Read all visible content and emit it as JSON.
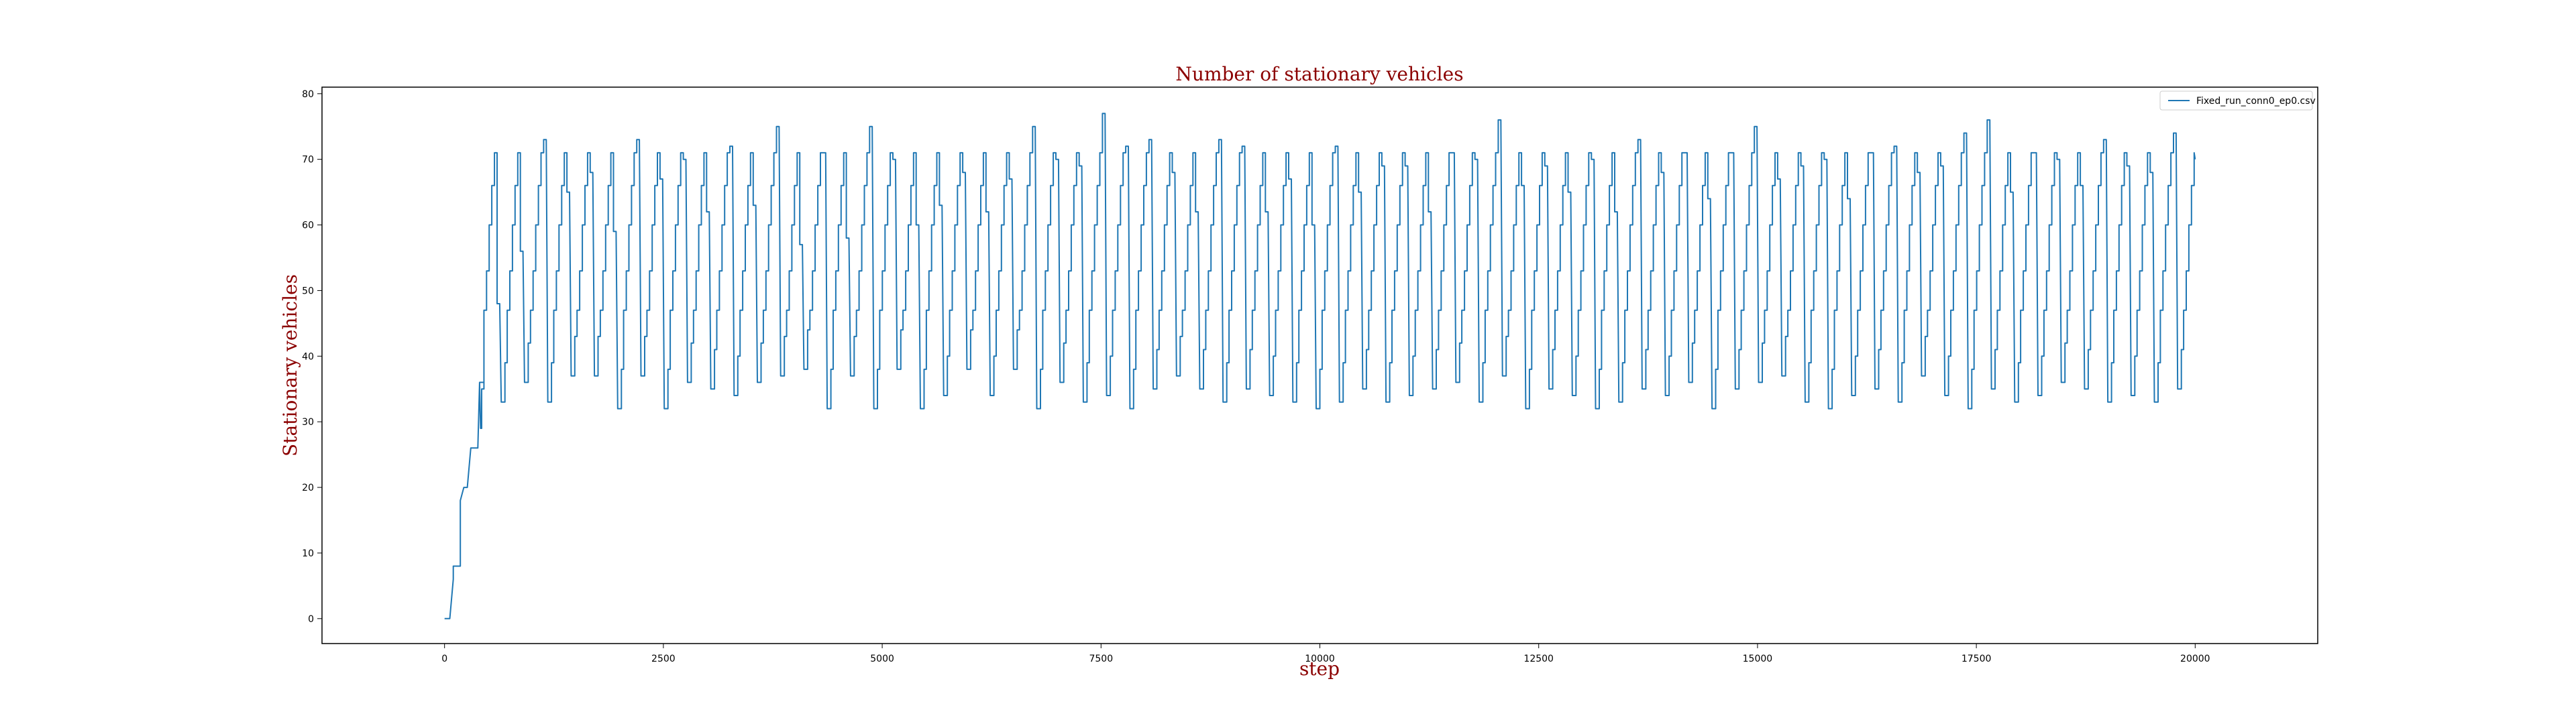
{
  "chart_data": {
    "type": "line",
    "title": "Number of stationary vehicles",
    "xlabel": "step",
    "ylabel": "Stationary vehicles",
    "xlim": [
      -1400,
      21400
    ],
    "ylim": [
      -3.8,
      81
    ],
    "xticks": [
      0,
      2500,
      5000,
      7500,
      10000,
      12500,
      15000,
      17500,
      20000
    ],
    "yticks": [
      0,
      10,
      20,
      30,
      40,
      50,
      60,
      70,
      80
    ],
    "grid": false,
    "legend_position": "top-right",
    "series": [
      {
        "name": "Fixed_run_conn0_ep0.csv",
        "color": "#1f77b4",
        "period": 266,
        "startup": {
          "x": [
            0,
            30,
            60,
            100,
            100,
            140,
            180,
            180,
            220,
            260,
            260,
            300,
            340,
            340,
            380,
            400,
            400,
            440
          ],
          "y": [
            0,
            0,
            0,
            6,
            8,
            8,
            8,
            18,
            20,
            20,
            20,
            26,
            26,
            26,
            26,
            36,
            36,
            36
          ]
        },
        "cycle_start": 400,
        "cycle_end": 20000,
        "cycle_pattern": {
          "comment_free": true,
          "offsets": [
            0,
            12,
            24,
            24,
            50,
            50,
            80,
            80,
            110,
            110,
            140,
            140,
            170,
            170,
            200,
            200,
            230,
            248
          ],
          "levels": [
            36,
            34,
            34,
            40,
            40,
            47,
            47,
            53,
            53,
            60,
            60,
            66,
            66,
            71,
            71,
            72,
            72,
            34
          ]
        },
        "peaks": [
          48,
          56,
          73,
          65,
          68,
          59,
          73,
          67,
          70,
          62,
          72,
          63,
          75,
          57,
          71,
          58,
          75,
          70,
          60,
          63,
          68,
          62,
          67,
          75,
          70,
          69,
          77,
          72,
          73,
          68,
          62,
          73,
          72,
          62,
          67,
          60,
          72,
          65,
          69,
          69,
          62,
          71,
          70,
          76,
          66,
          69,
          65,
          70,
          62,
          73,
          68,
          71,
          64,
          71,
          75,
          67,
          69,
          70,
          64,
          71,
          72,
          68,
          69,
          74,
          76,
          65,
          71,
          70,
          66,
          73,
          69,
          68,
          74,
          69,
          73,
          72,
          70
        ],
        "troughs": [
          29,
          33,
          36,
          33,
          37,
          37,
          32,
          37,
          32,
          36,
          35,
          34,
          36,
          37,
          38,
          32,
          37,
          32,
          38,
          32,
          34,
          38,
          34,
          38,
          32,
          36,
          33,
          34,
          32,
          35,
          37,
          35,
          33,
          35,
          34,
          33,
          32,
          33,
          35,
          33,
          34,
          35,
          36,
          33,
          37,
          32,
          35,
          34,
          32,
          33,
          35,
          34,
          36,
          32,
          35,
          36,
          37,
          33,
          32,
          34,
          35,
          33,
          37,
          34,
          32,
          35,
          33,
          34,
          36,
          35,
          33,
          34,
          33,
          35,
          34,
          33,
          45
        ],
        "end_value": 70
      }
    ]
  }
}
